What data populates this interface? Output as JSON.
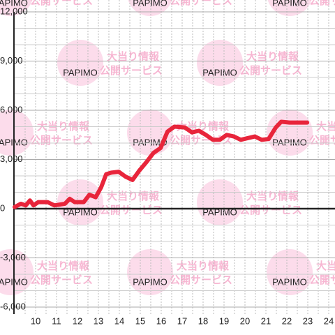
{
  "chart_data": {
    "type": "line",
    "watermark": {
      "logo": "PAPIMO",
      "line1": "大当り情報",
      "line2": "公開サービス"
    },
    "series": [
      {
        "color": "#e8253b",
        "x": [
          9.0,
          9.3,
          9.53,
          9.73,
          9.9,
          10.13,
          10.57,
          10.9,
          11.4,
          11.63,
          11.87,
          12.3,
          12.57,
          12.87,
          13.13,
          13.37,
          13.63,
          13.97,
          14.3,
          14.63,
          14.97,
          15.3,
          15.63,
          15.97,
          16.3,
          16.63,
          17.13,
          17.47,
          17.8,
          18.13,
          18.47,
          18.8,
          19.13,
          19.47,
          19.8,
          20.13,
          20.47,
          20.8,
          21.13,
          21.47,
          21.73,
          22.13,
          22.97
        ],
        "values": [
          100,
          300,
          200,
          500,
          200,
          400,
          400,
          200,
          300,
          600,
          400,
          400,
          850,
          700,
          1300,
          2100,
          2200,
          2250,
          1950,
          1750,
          2350,
          2850,
          3400,
          3700,
          4700,
          5000,
          4950,
          4650,
          4750,
          4500,
          4200,
          4200,
          4500,
          4400,
          4200,
          4300,
          4400,
          4200,
          4250,
          4950,
          5300,
          5250,
          5250
        ]
      }
    ],
    "xlim": [
      9,
      24.3
    ],
    "xticks": [
      10,
      11,
      12,
      13,
      14,
      15,
      16,
      17,
      18,
      19,
      20,
      21,
      22,
      23,
      24
    ],
    "ylim": [
      -6000,
      12000
    ],
    "yticks": [
      {
        "value": -6000,
        "label": "-6,000"
      },
      {
        "value": -3000,
        "label": "-3,000"
      },
      0,
      {
        "value": 3000,
        "label": "3,000"
      },
      {
        "value": 6000,
        "label": "6,000"
      },
      {
        "value": 9000,
        "label": "9,000"
      },
      {
        "value": 12000,
        "label": "12,000"
      }
    ],
    "grid": true
  }
}
